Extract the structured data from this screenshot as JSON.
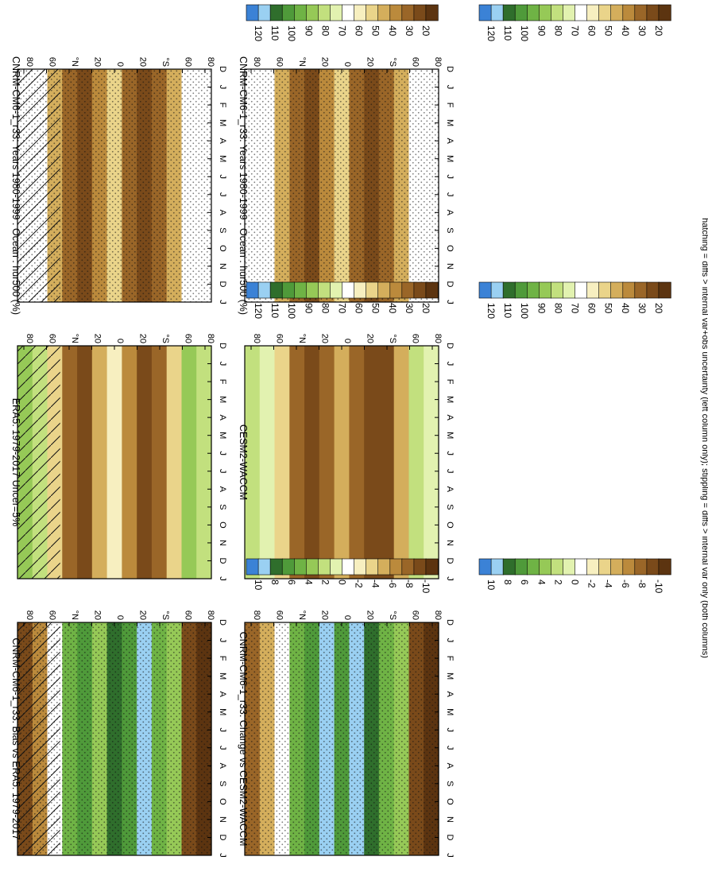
{
  "footnote": "hatching = diffs > internal var+obs uncertainty (left column only); stippling = diffs > internal var only (both columns)",
  "chart_data": [
    {
      "type": "heatmap",
      "title": "CNRM-CM6-1_r33: Years 1980-1999 : Ocean : hur500 (%)",
      "xticks": [
        "D",
        "J",
        "F",
        "M",
        "A",
        "M",
        "J",
        "J",
        "A",
        "S",
        "O",
        "N",
        "D",
        "J"
      ],
      "yticks": [
        "80",
        "60",
        "°N",
        "20",
        "0",
        "20",
        "°S",
        "60",
        "80"
      ],
      "colorbar": {
        "labels": [
          "120",
          "110",
          "100",
          "90",
          "80",
          "70",
          "60",
          "50",
          "40",
          "30",
          "20"
        ]
      },
      "hatching": true,
      "stippling": true
    },
    {
      "type": "heatmap",
      "title": "CNRM-CM6-1_r33: Years 1980-1999 : Ocean : hur500 (%)",
      "xticks": [
        "D",
        "J",
        "F",
        "M",
        "A",
        "M",
        "J",
        "J",
        "A",
        "S",
        "O",
        "N",
        "D",
        "J"
      ],
      "yticks": [
        "80",
        "60",
        "°N",
        "20",
        "0",
        "20",
        "°S",
        "60",
        "80"
      ],
      "colorbar": {
        "labels": [
          "120",
          "110",
          "100",
          "90",
          "80",
          "70",
          "60",
          "50",
          "40",
          "30",
          "20"
        ]
      },
      "hatching": false,
      "stippling": true
    },
    {
      "type": "heatmap",
      "title": "ERA5: 1979-2017 Uncer=5%",
      "xticks": [
        "D",
        "J",
        "F",
        "M",
        "A",
        "M",
        "J",
        "J",
        "A",
        "S",
        "O",
        "N",
        "D",
        "J"
      ],
      "yticks": [
        "80",
        "60",
        "°N",
        "20",
        "0",
        "20",
        "°S",
        "60",
        "80"
      ],
      "colorbar": {
        "labels": [
          "120",
          "110",
          "100",
          "90",
          "80",
          "70",
          "60",
          "50",
          "40",
          "30",
          "20"
        ]
      },
      "hatching": true,
      "stippling": false
    },
    {
      "type": "heatmap",
      "title": "CESM2-WACCM",
      "xticks": [
        "D",
        "J",
        "F",
        "M",
        "A",
        "M",
        "J",
        "J",
        "A",
        "S",
        "O",
        "N",
        "D",
        "J"
      ],
      "yticks": [
        "80",
        "60",
        "°N",
        "20",
        "0",
        "20",
        "°S",
        "60",
        "80"
      ],
      "colorbar": {
        "labels": [
          "120",
          "110",
          "100",
          "90",
          "80",
          "70",
          "60",
          "50",
          "40",
          "30",
          "20"
        ]
      },
      "hatching": false,
      "stippling": false
    },
    {
      "type": "heatmap",
      "title": "CNRM-CM6-1_r33: Bias vs ERA5: 1979-2017",
      "xticks": [
        "D",
        "J",
        "F",
        "M",
        "A",
        "M",
        "J",
        "J",
        "A",
        "S",
        "O",
        "N",
        "D",
        "J"
      ],
      "yticks": [
        "80",
        "60",
        "°N",
        "20",
        "0",
        "20",
        "°S",
        "60",
        "80"
      ],
      "colorbar": {
        "labels": [
          "10",
          "8",
          "6",
          "4",
          "2",
          "0",
          "-2",
          "-4",
          "-6",
          "-8",
          "-10"
        ]
      },
      "hatching": true,
      "stippling": true
    },
    {
      "type": "heatmap",
      "title": "CNRM-CM6-1_r33: Change vs CESM2-WACCM",
      "xticks": [
        "D",
        "J",
        "F",
        "M",
        "A",
        "M",
        "J",
        "J",
        "A",
        "S",
        "O",
        "N",
        "D",
        "J"
      ],
      "yticks": [
        "80",
        "60",
        "°N",
        "20",
        "0",
        "20",
        "°S",
        "60",
        "80"
      ],
      "colorbar": {
        "labels": [
          "10",
          "8",
          "6",
          "4",
          "2",
          "0",
          "-2",
          "-4",
          "-6",
          "-8",
          "-10"
        ]
      },
      "hatching": false,
      "stippling": true
    }
  ],
  "colors": {
    "scale": [
      "#3b82d6",
      "#9ad0f2",
      "#2f6e2c",
      "#4f9a3a",
      "#6fb345",
      "#96c957",
      "#c2e07e",
      "#e2f2b0",
      "#ffffff",
      "#f7efc0",
      "#ead48a",
      "#d4ae5c",
      "#bb8a3c",
      "#9a6628",
      "#7a4a1a",
      "#5c3410"
    ]
  }
}
